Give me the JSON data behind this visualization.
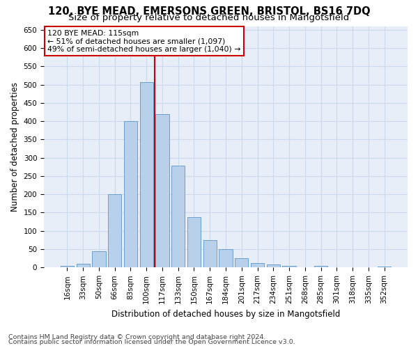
{
  "title1": "120, BYE MEAD, EMERSONS GREEN, BRISTOL, BS16 7DQ",
  "title2": "Size of property relative to detached houses in Mangotsfield",
  "xlabel": "Distribution of detached houses by size in Mangotsfield",
  "ylabel": "Number of detached properties",
  "categories": [
    "16sqm",
    "33sqm",
    "50sqm",
    "66sqm",
    "83sqm",
    "100sqm",
    "117sqm",
    "133sqm",
    "150sqm",
    "167sqm",
    "184sqm",
    "201sqm",
    "217sqm",
    "234sqm",
    "251sqm",
    "268sqm",
    "285sqm",
    "301sqm",
    "318sqm",
    "335sqm",
    "352sqm"
  ],
  "values": [
    5,
    10,
    45,
    200,
    400,
    507,
    420,
    278,
    138,
    75,
    50,
    25,
    12,
    8,
    5,
    0,
    5,
    0,
    0,
    0,
    3
  ],
  "bar_color": "#b8d0ea",
  "bar_edge_color": "#6aa0cc",
  "vline_index": 6,
  "vline_color": "#cc0000",
  "annotation_line1": "120 BYE MEAD: 115sqm",
  "annotation_line2": "← 51% of detached houses are smaller (1,097)",
  "annotation_line3": "49% of semi-detached houses are larger (1,040) →",
  "annotation_box_color": "#ffffff",
  "annotation_box_edge": "#cc0000",
  "footnote1": "Contains HM Land Registry data © Crown copyright and database right 2024.",
  "footnote2": "Contains public sector information licensed under the Open Government Licence v3.0.",
  "ylim": [
    0,
    660
  ],
  "yticks": [
    0,
    50,
    100,
    150,
    200,
    250,
    300,
    350,
    400,
    450,
    500,
    550,
    600,
    650
  ],
  "grid_color": "#cdd8ea",
  "bg_color": "#e8eef8",
  "title1_fontsize": 10.5,
  "title2_fontsize": 9.5,
  "axis_label_fontsize": 8.5,
  "tick_fontsize": 7.5,
  "annotation_fontsize": 7.8,
  "footnote_fontsize": 6.8
}
